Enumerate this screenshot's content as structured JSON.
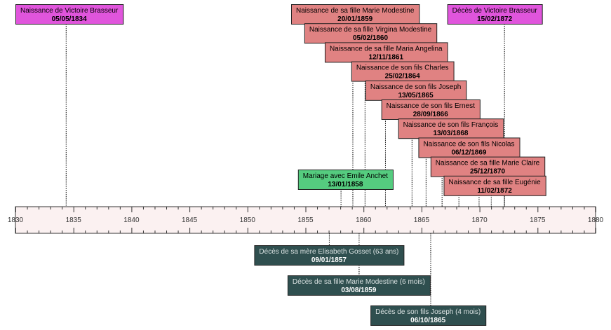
{
  "axis": {
    "start": 1830,
    "end": 1880,
    "labels": [
      "1830",
      "1835",
      "1840",
      "1845",
      "1850",
      "1855",
      "1860",
      "1865",
      "1870",
      "1875",
      "1880"
    ]
  },
  "colors": {
    "birth_person": "#e055dc",
    "child_birth": "#e08282",
    "marriage": "#55cc7f",
    "death_family": "#2f4f4f",
    "axis_fill": "#fbf1f1"
  },
  "events": [
    {
      "id": "naissance-victoire",
      "title": "Naissance de Victoire Brasseur",
      "date": "05/05/1834",
      "year": 1834.34,
      "category": "birth_person",
      "side": "above",
      "row": 0
    },
    {
      "id": "deces-victoire",
      "title": "Décès de Victoire Brasseur",
      "date": "15/02/1872",
      "year": 1872.12,
      "category": "birth_person",
      "side": "above",
      "row": 0
    },
    {
      "id": "naissance-marie-modestine",
      "title": "Naissance de sa fille Marie Modestine",
      "date": "20/01/1859",
      "year": 1859.05,
      "category": "child_birth",
      "side": "above",
      "row": 0
    },
    {
      "id": "naissance-virgina-modestine",
      "title": "Naissance de sa fille Virgina Modestine",
      "date": "05/02/1860",
      "year": 1860.1,
      "category": "child_birth",
      "side": "above",
      "row": 1
    },
    {
      "id": "naissance-maria-angelina",
      "title": "Naissance de sa fille Maria Angelina",
      "date": "12/11/1861",
      "year": 1861.86,
      "category": "child_birth",
      "side": "above",
      "row": 2
    },
    {
      "id": "naissance-charles",
      "title": "Naissance de son fils Charles",
      "date": "25/02/1864",
      "year": 1864.15,
      "category": "child_birth",
      "side": "above",
      "row": 3
    },
    {
      "id": "naissance-joseph",
      "title": "Naissance de son fils Joseph",
      "date": "13/05/1865",
      "year": 1865.36,
      "category": "child_birth",
      "side": "above",
      "row": 4
    },
    {
      "id": "naissance-ernest",
      "title": "Naissance de son fils Ernest",
      "date": "28/09/1866",
      "year": 1866.74,
      "category": "child_birth",
      "side": "above",
      "row": 5
    },
    {
      "id": "naissance-francois",
      "title": "Naissance de son fils François",
      "date": "13/03/1868",
      "year": 1868.19,
      "category": "child_birth",
      "side": "above",
      "row": 6
    },
    {
      "id": "naissance-nicolas",
      "title": "Naissance de son fils Nicolas",
      "date": "06/12/1869",
      "year": 1869.93,
      "category": "child_birth",
      "side": "above",
      "row": 7
    },
    {
      "id": "naissance-marie-claire",
      "title": "Naissance de sa fille Marie Claire",
      "date": "25/12/1870",
      "year": 1870.98,
      "category": "child_birth",
      "side": "above",
      "row": 8
    },
    {
      "id": "naissance-eugenie",
      "title": "Naissance de sa fille Eugénie",
      "date": "11/02/1872",
      "year": 1872.11,
      "category": "child_birth",
      "side": "above",
      "row": 9
    },
    {
      "id": "mariage-emile",
      "title": "Mariage avec Emile Anchet",
      "date": "13/01/1858",
      "year": 1858.03,
      "category": "marriage",
      "side": "above",
      "row": 8
    },
    {
      "id": "deces-elisabeth",
      "title": "Décès de sa mère Elisabeth Gosset (63 ans)",
      "date": "09/01/1857",
      "year": 1857.02,
      "category": "death_family",
      "side": "below",
      "row": 0
    },
    {
      "id": "deces-marie-modestine",
      "title": "Décès de sa fille Marie Modestine (6 mois)",
      "date": "03/08/1859",
      "year": 1859.59,
      "category": "death_family",
      "side": "below",
      "row": 1
    },
    {
      "id": "deces-joseph",
      "title": "Décès de son fils Joseph (4 mois)",
      "date": "06/10/1865",
      "year": 1865.76,
      "category": "death_family",
      "side": "below",
      "row": 2
    }
  ]
}
